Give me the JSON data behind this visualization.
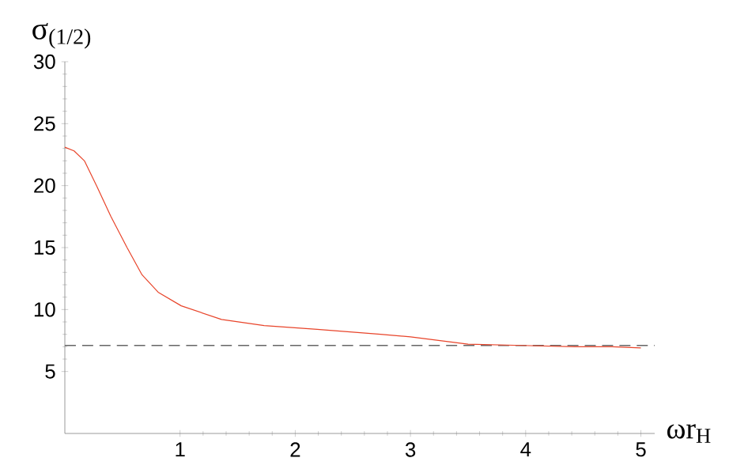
{
  "chart_data": {
    "type": "line",
    "xlabel": "ωr$_{H}$",
    "ylabel": "σ$_{(1/2)}$",
    "x": [
      0,
      0.08,
      0.17,
      0.28,
      0.4,
      0.54,
      0.67,
      0.81,
      1.01,
      1.36,
      1.73,
      2.19,
      2.74,
      3.0,
      3.5,
      3.97,
      4.43,
      4.75,
      5.0
    ],
    "series": [
      {
        "color": "#e8442a",
        "values": [
          23.1,
          22.8,
          22.0,
          19.9,
          17.5,
          15.0,
          12.8,
          11.4,
          10.3,
          9.2,
          8.7,
          8.4,
          8.0,
          7.8,
          7.2,
          7.1,
          7.0,
          7.0,
          6.9
        ]
      }
    ],
    "xlim": [
      0,
      5.12
    ],
    "ylim": [
      0,
      30
    ],
    "xticks": [
      1,
      2,
      3,
      4,
      5
    ],
    "yticks": [
      5,
      10,
      15,
      20,
      25,
      30
    ],
    "ref_lines": [
      {
        "axis": "y",
        "value": 7.1,
        "color": "#666666",
        "line_style": "dashed"
      }
    ],
    "grid": false,
    "marker": "none",
    "line_style": "solid"
  }
}
